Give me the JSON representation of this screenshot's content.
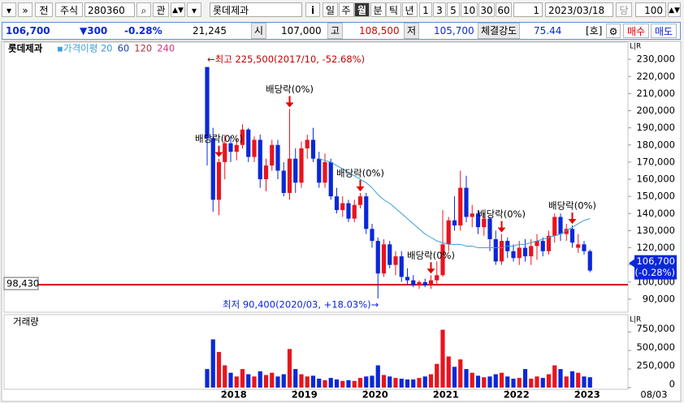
{
  "toolbar": {
    "market": "전",
    "asset_type": "주식",
    "code": "280360",
    "interest": "관",
    "name": "롯데제과",
    "info": "i",
    "periods": [
      "일",
      "주",
      "월",
      "분",
      "틱",
      "년"
    ],
    "selected_period": "월",
    "intervals": [
      "1",
      "3",
      "5",
      "10",
      "30",
      "60"
    ],
    "count": "1",
    "date": "2023/03/18",
    "current": "당",
    "bars": "100"
  },
  "quote": {
    "price": "106,700",
    "change": "▼300",
    "change_rate": "-0.28%",
    "volume": "21,245",
    "open_label": "시",
    "open": "107,000",
    "high_label": "고",
    "high": "108,500",
    "low_label": "저",
    "low": "105,700",
    "strength_label": "체결강도",
    "strength": "75.44",
    "hoga": "[호]",
    "buy": "매수",
    "sell": "매도"
  },
  "chart_data": {
    "type": "candlestick",
    "title": "롯데제과",
    "categories": [
      null,
      null,
      null,
      "2018",
      null,
      null,
      null,
      null,
      null,
      null,
      null,
      null,
      null,
      null,
      null,
      "2019",
      null,
      null,
      null,
      null,
      null,
      null,
      null,
      null,
      null,
      null,
      null,
      "2020",
      null,
      null,
      null,
      null,
      null,
      null,
      null,
      null,
      null,
      null,
      null,
      "2021",
      null,
      null,
      null,
      null,
      null,
      null,
      null,
      null,
      null,
      null,
      null,
      "2022",
      null,
      null,
      null,
      null,
      null,
      null,
      null,
      null,
      null,
      null,
      null,
      "2023",
      null,
      null
    ],
    "open": [
      225500,
      184000,
      148000,
      170000,
      181000,
      176000,
      180000,
      189000,
      173000,
      183000,
      160000,
      168000,
      180000,
      165000,
      152000,
      172000,
      158000,
      178000,
      183000,
      172000,
      158000,
      170000,
      150000,
      142000,
      146000,
      137000,
      145000,
      150000,
      131000,
      124000,
      105000,
      122000,
      110000,
      115000,
      103000,
      101000,
      98000,
      100000,
      98000,
      101000,
      104000,
      122000,
      136000,
      133000,
      155000,
      138000,
      140000,
      132000,
      137000,
      125000,
      112000,
      124000,
      118000,
      114000,
      120000,
      115000,
      121000,
      124000,
      118000,
      127000,
      138000,
      128000,
      131000,
      120000,
      122000,
      118000
    ],
    "high": [
      225500,
      190000,
      172000,
      186000,
      185000,
      184000,
      192000,
      190000,
      185000,
      186000,
      172000,
      183000,
      183000,
      170000,
      201000,
      178000,
      182000,
      186000,
      190000,
      176000,
      175000,
      172000,
      155000,
      150000,
      148000,
      148000,
      152000,
      152000,
      134000,
      126000,
      125000,
      124000,
      118000,
      118000,
      108000,
      104000,
      101000,
      102000,
      104000,
      112000,
      142000,
      138000,
      150000,
      165000,
      162000,
      145000,
      142000,
      140000,
      138000,
      130000,
      128000,
      126000,
      122000,
      124000,
      125000,
      125000,
      128000,
      126000,
      130000,
      140000,
      140000,
      134000,
      133000,
      128000,
      124000,
      119000
    ],
    "low": [
      168000,
      141000,
      139000,
      160000,
      170000,
      171000,
      178000,
      170000,
      170000,
      155000,
      153000,
      165000,
      160000,
      150000,
      148000,
      152000,
      155000,
      172000,
      170000,
      155000,
      155000,
      148000,
      140000,
      138000,
      135000,
      135000,
      143000,
      128000,
      120000,
      90400,
      103000,
      108000,
      104000,
      100000,
      98000,
      97000,
      96000,
      97000,
      96000,
      99000,
      103000,
      118000,
      130000,
      130000,
      135000,
      132000,
      128000,
      127000,
      118000,
      110000,
      110000,
      114000,
      112000,
      110000,
      112000,
      110000,
      113000,
      115000,
      116000,
      123000,
      124000,
      124000,
      120000,
      117000,
      116000,
      105700
    ],
    "close": [
      184000,
      148000,
      170000,
      181000,
      176000,
      180000,
      189000,
      173000,
      183000,
      160000,
      168000,
      180000,
      165000,
      152000,
      172000,
      158000,
      178000,
      183000,
      172000,
      158000,
      170000,
      150000,
      142000,
      146000,
      137000,
      145000,
      150000,
      131000,
      124000,
      105000,
      122000,
      110000,
      115000,
      103000,
      101000,
      98000,
      100000,
      98000,
      101000,
      104000,
      122000,
      136000,
      133000,
      155000,
      138000,
      140000,
      132000,
      137000,
      125000,
      112000,
      124000,
      118000,
      114000,
      120000,
      115000,
      121000,
      124000,
      118000,
      127000,
      138000,
      128000,
      131000,
      123000,
      122000,
      118000,
      106700
    ],
    "up_color": "#e8141e",
    "down_color": "#0a28d8",
    "moving_averages": [
      {
        "name": "가격이평 20",
        "color": "#3a9fd6",
        "values": [
          null,
          null,
          null,
          null,
          null,
          null,
          null,
          null,
          null,
          null,
          null,
          null,
          null,
          null,
          null,
          null,
          null,
          null,
          null,
          172000,
          171000,
          170000,
          168000,
          166000,
          164000,
          162000,
          160000,
          158000,
          155000,
          151000,
          148000,
          146000,
          143000,
          140000,
          137000,
          134000,
          131000,
          128000,
          126000,
          124000,
          123000,
          122000,
          122000,
          122000,
          121000,
          121000,
          120000,
          120000,
          120000,
          120000,
          120000,
          121000,
          121000,
          122000,
          122000,
          123000,
          124000,
          125000,
          126000,
          127000,
          128000,
          130000,
          132000,
          134000,
          136000,
          137000
        ]
      },
      {
        "name": "60",
        "color": "#1b3fa8"
      },
      {
        "name": "120",
        "color": "#b0303a"
      },
      {
        "name": "240",
        "color": "#e0307a"
      }
    ],
    "ylim": [
      82400,
      240000
    ],
    "yticks": [
      {
        "value": 90000,
        "label": "90,000"
      },
      {
        "value": 100000,
        "label": "100,000"
      },
      {
        "value": 110000,
        "label": "110,000"
      },
      {
        "value": 120000,
        "label": "120,000"
      },
      {
        "value": 130000,
        "label": "130,000"
      },
      {
        "value": 140000,
        "label": "140,000"
      },
      {
        "value": 150000,
        "label": "150,000"
      },
      {
        "value": 160000,
        "label": "160,000"
      },
      {
        "value": 170000,
        "label": "170,000"
      },
      {
        "value": 180000,
        "label": "180,000"
      },
      {
        "value": 190000,
        "label": "190,000"
      },
      {
        "value": 200000,
        "label": "200,000"
      },
      {
        "value": 210000,
        "label": "210,000"
      },
      {
        "value": 220000,
        "label": "220,000"
      },
      {
        "value": 230000,
        "label": "230,000"
      }
    ],
    "grid": false,
    "ex_dividend_labels": [
      null,
      null,
      "배당락(0%)",
      null,
      null,
      null,
      null,
      null,
      null,
      null,
      null,
      null,
      null,
      null,
      "배당락(0%)",
      null,
      null,
      null,
      null,
      null,
      null,
      null,
      null,
      null,
      null,
      null,
      "배당락(0%)",
      null,
      null,
      null,
      null,
      null,
      null,
      null,
      null,
      null,
      null,
      null,
      "배당락(0%)",
      null,
      null,
      null,
      null,
      null,
      null,
      null,
      null,
      null,
      null,
      null,
      "배당락(0%)",
      null,
      null,
      null,
      null,
      null,
      null,
      null,
      null,
      null,
      null,
      null,
      "배당락(0%)",
      null,
      null,
      null
    ],
    "high_annotation": "←최고 225,500(2017/10, -52.68%)",
    "low_annotation": "최저 90,400(2020/03, +18.03%)→",
    "reference_line": {
      "value": 98430,
      "label": "98,430",
      "color": "#e00000"
    },
    "last_price_label": "106,700",
    "last_change_label": "(-0.28%)",
    "panel_marker": "L|R",
    "volume": {
      "title": "거래량",
      "values": [
        250000,
        650000,
        480000,
        300000,
        200000,
        150000,
        250000,
        180000,
        150000,
        220000,
        170000,
        200000,
        150000,
        180000,
        520000,
        250000,
        180000,
        150000,
        160000,
        120000,
        100000,
        130000,
        110000,
        90000,
        100000,
        90000,
        130000,
        150000,
        160000,
        300000,
        170000,
        150000,
        130000,
        120000,
        110000,
        110000,
        130000,
        150000,
        180000,
        320000,
        780000,
        420000,
        280000,
        380000,
        250000,
        200000,
        160000,
        140000,
        150000,
        180000,
        200000,
        150000,
        120000,
        130000,
        250000,
        120000,
        150000,
        130000,
        180000,
        300000,
        250000,
        150000,
        220000,
        200000,
        150000,
        140000
      ],
      "ylim": [
        0,
        940000
      ],
      "yticks": [
        0,
        {
          "value": 250000,
          "label": "250,000"
        },
        {
          "value": 500000,
          "label": "500,000"
        },
        {
          "value": 750000,
          "label": "750,000"
        }
      ]
    },
    "time_label": "08/03"
  }
}
